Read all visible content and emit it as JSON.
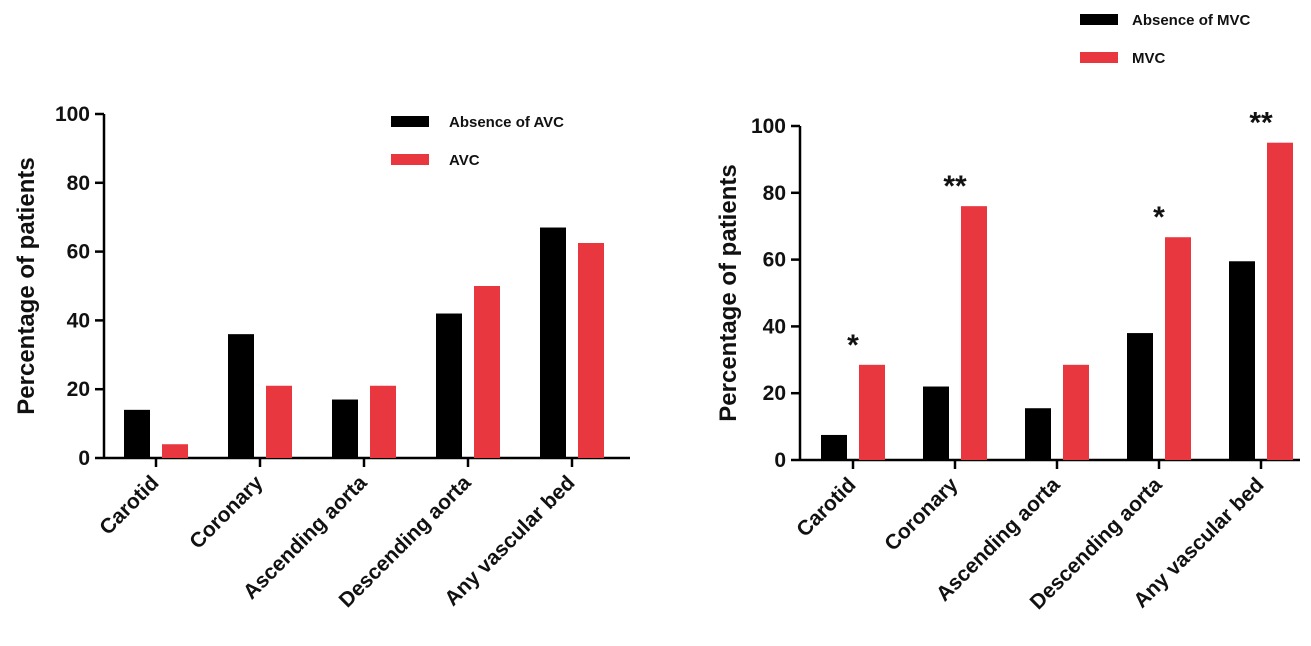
{
  "chart_data": [
    {
      "type": "bar",
      "ylabel": "Percentage of patients",
      "ylim": [
        0,
        100
      ],
      "yticks": [
        0,
        20,
        40,
        60,
        80,
        100
      ],
      "categories": [
        "Carotid",
        "Coronary",
        "Ascending aorta",
        "Descending aorta",
        "Any vascular bed"
      ],
      "series": [
        {
          "name": "Absence of AVC",
          "color": "#000000",
          "values": [
            14,
            36,
            17,
            42,
            67
          ]
        },
        {
          "name": "AVC",
          "color": "#e8373e",
          "values": [
            4,
            21,
            21,
            50,
            62.5
          ]
        }
      ],
      "annotations": [],
      "legend": "top-right"
    },
    {
      "type": "bar",
      "ylabel": "Percentage of patients",
      "ylim": [
        0,
        100
      ],
      "yticks": [
        0,
        20,
        40,
        60,
        80,
        100
      ],
      "categories": [
        "Carotid",
        "Coronary",
        "Ascending aorta",
        "Descending aorta",
        "Any vascular bed"
      ],
      "series": [
        {
          "name": "Absence of MVC",
          "color": "#000000",
          "values": [
            7.5,
            22,
            15.5,
            38,
            59.5
          ]
        },
        {
          "name": "MVC",
          "color": "#e8373e",
          "values": [
            28.5,
            76,
            28.5,
            66.7,
            95
          ]
        }
      ],
      "annotations": [
        "*",
        "**",
        "",
        "*",
        "**"
      ],
      "legend": "top"
    }
  ]
}
